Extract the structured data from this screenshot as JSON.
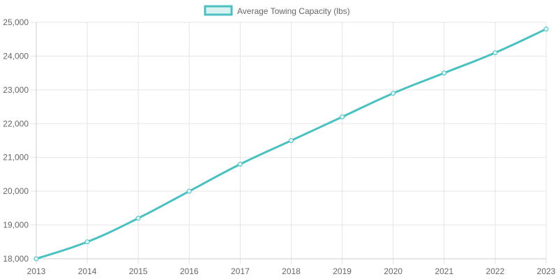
{
  "chart_data": {
    "type": "line",
    "x": [
      "2013",
      "2014",
      "2015",
      "2016",
      "2017",
      "2018",
      "2019",
      "2020",
      "2021",
      "2022",
      "2023"
    ],
    "series": [
      {
        "name": "Average Towing Capacity (lbs)",
        "values": [
          18000,
          18500,
          19200,
          20000,
          20800,
          21500,
          22200,
          22900,
          23500,
          24100,
          24800
        ]
      }
    ],
    "y_ticks": [
      "18,000",
      "19,000",
      "20,000",
      "21,000",
      "22,000",
      "23,000",
      "24,000",
      "25,000"
    ],
    "ylim": [
      18000,
      25000
    ],
    "grid": true,
    "legend": "top-center",
    "colors": {
      "line": "#4bc0c0",
      "fill": "#d9f2f2",
      "grid": "#e5e5e5",
      "axis": "#cccccc",
      "text": "#666666"
    }
  }
}
